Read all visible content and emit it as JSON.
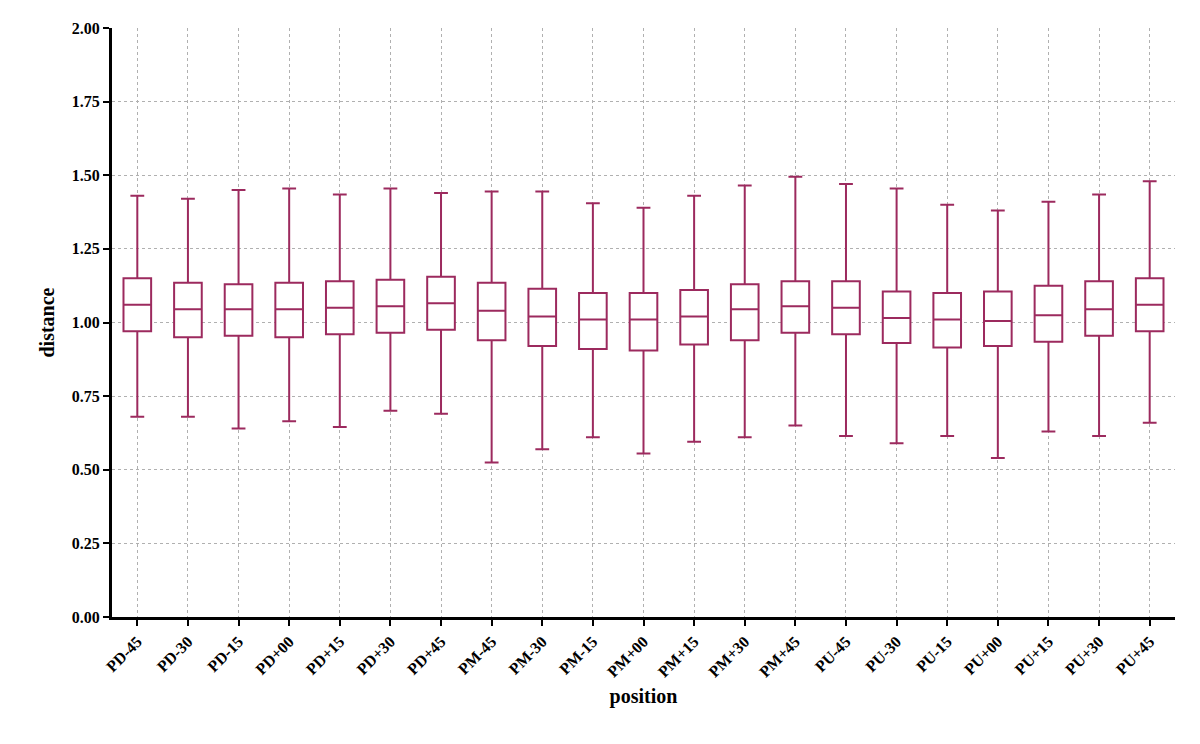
{
  "chart_data": {
    "type": "box",
    "xlabel": "position",
    "ylabel": "distance",
    "color": "#9c2a5e",
    "grid": true,
    "categories": [
      "PD-45",
      "PD-30",
      "PD-15",
      "PD+00",
      "PD+15",
      "PD+30",
      "PD+45",
      "PM-45",
      "PM-30",
      "PM-15",
      "PM+00",
      "PM+15",
      "PM+30",
      "PM+45",
      "PU-45",
      "PU-30",
      "PU-15",
      "PU+00",
      "PU+15",
      "PU+30",
      "PU+45"
    ],
    "min": [
      0.68,
      0.68,
      0.64,
      0.665,
      0.645,
      0.7,
      0.69,
      0.525,
      0.57,
      0.61,
      0.555,
      0.595,
      0.61,
      0.65,
      0.615,
      0.59,
      0.615,
      0.54,
      0.63,
      0.615,
      0.66
    ],
    "q1": [
      0.97,
      0.95,
      0.955,
      0.95,
      0.96,
      0.965,
      0.975,
      0.94,
      0.92,
      0.91,
      0.905,
      0.925,
      0.94,
      0.965,
      0.96,
      0.93,
      0.915,
      0.92,
      0.935,
      0.955,
      0.97
    ],
    "median": [
      1.06,
      1.045,
      1.045,
      1.045,
      1.05,
      1.055,
      1.065,
      1.04,
      1.02,
      1.01,
      1.01,
      1.02,
      1.045,
      1.055,
      1.05,
      1.015,
      1.01,
      1.005,
      1.025,
      1.045,
      1.06
    ],
    "q3": [
      1.15,
      1.135,
      1.13,
      1.135,
      1.14,
      1.145,
      1.155,
      1.135,
      1.115,
      1.1,
      1.1,
      1.11,
      1.13,
      1.14,
      1.14,
      1.105,
      1.1,
      1.105,
      1.125,
      1.14,
      1.15
    ],
    "max": [
      1.43,
      1.42,
      1.45,
      1.455,
      1.435,
      1.455,
      1.44,
      1.445,
      1.445,
      1.405,
      1.39,
      1.43,
      1.465,
      1.495,
      1.47,
      1.455,
      1.4,
      1.38,
      1.41,
      1.435,
      1.48
    ],
    "ylim": [
      0,
      2
    ],
    "yticks": [
      {
        "value": 0,
        "label": "0.00"
      },
      {
        "value": 0.25,
        "label": "0.25"
      },
      {
        "value": 0.5,
        "label": "0.50"
      },
      {
        "value": 0.75,
        "label": "0.75"
      },
      {
        "value": 1,
        "label": "1.00"
      },
      {
        "value": 1.25,
        "label": "1.25"
      },
      {
        "value": 1.5,
        "label": "1.50"
      },
      {
        "value": 1.75,
        "label": "1.75"
      },
      {
        "value": 2,
        "label": "2.00"
      }
    ]
  }
}
